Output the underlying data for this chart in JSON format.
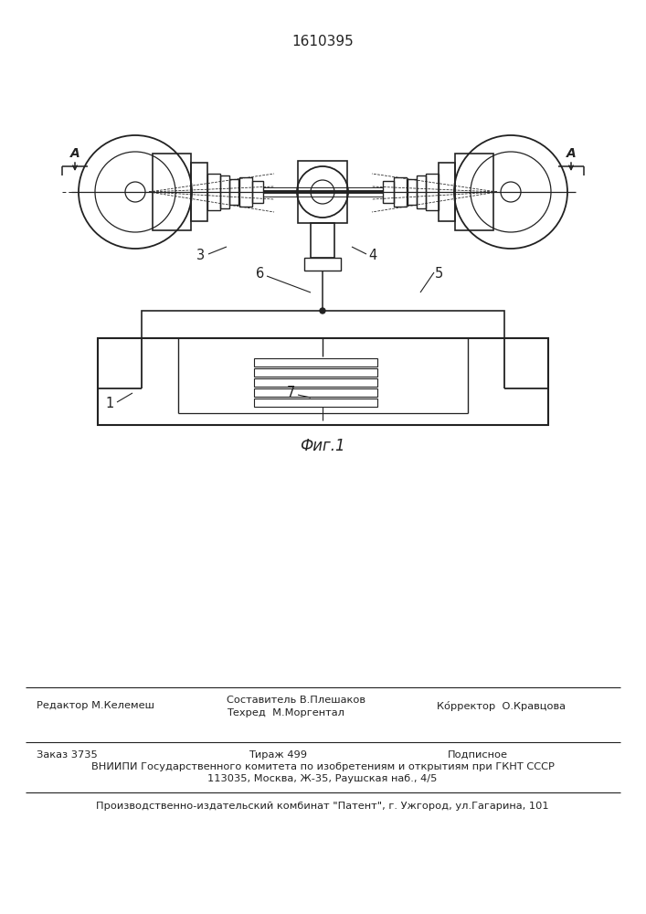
{
  "patent_number": "1610395",
  "figure_label": "Фиг.1",
  "bg_color": "#ffffff",
  "line_color": "#222222",
  "footer": {
    "editor": "Редактор М.Келемеш",
    "compiler": "Составитель В.Плешаков",
    "techred": "Техред  М.Моргентал",
    "corrector": "Ко́рректор  О.Кравцова",
    "order": "Заказ 3735",
    "circulation": "Тираж 499",
    "subscription": "Подписное",
    "vniipи_line1": "ВНИИПИ Государственного комитета по изобретениям и открытиям при ГКНТ СССР",
    "vniipи_line2": "113035, Москва, Ж-35, Раушская наб., 4/5",
    "publisher": "Производственно-издательский комбинат \"Патент\", г. Ужгород, ул.Гагарина, 101"
  }
}
